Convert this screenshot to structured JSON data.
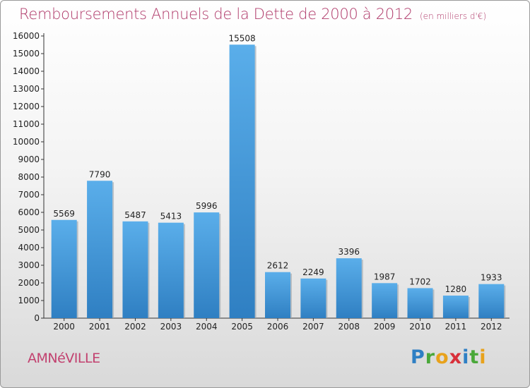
{
  "chart_data": {
    "type": "bar",
    "title": "Remboursements Annuels de la Dette de 2000 à 2012",
    "subtitle": "(en milliers d'€)",
    "categories": [
      "2000",
      "2001",
      "2002",
      "2003",
      "2004",
      "2005",
      "2006",
      "2007",
      "2008",
      "2009",
      "2010",
      "2011",
      "2012"
    ],
    "values": [
      5569,
      7790,
      5487,
      5413,
      5996,
      15508,
      2612,
      2249,
      3396,
      1987,
      1702,
      1280,
      1933
    ],
    "data_labels": [
      "5569",
      "7790",
      "5487",
      "5413",
      "5996",
      "15508",
      "2612",
      "2249",
      "3396",
      "1987",
      "1702",
      "1280",
      "1933"
    ],
    "y_ticks": [
      "0",
      "1000",
      "2000",
      "3000",
      "4000",
      "5000",
      "6000",
      "7000",
      "8000",
      "9000",
      "10000",
      "11000",
      "12000",
      "13000",
      "14000",
      "15000",
      "16000"
    ],
    "ylim": [
      0,
      16000
    ],
    "xlabel": "",
    "ylabel": "",
    "bar_color": "#3f93d6",
    "grid": false
  },
  "footer": {
    "commune": "AMNéVILLE",
    "logo_letters": [
      {
        "ch": "P",
        "color": "#2e7fc4"
      },
      {
        "ch": "r",
        "color": "#4aa83a"
      },
      {
        "ch": "o",
        "color": "#e8a21c"
      },
      {
        "ch": "x",
        "color": "#d8303a"
      },
      {
        "ch": "i",
        "color": "#2e7fc4"
      },
      {
        "ch": "t",
        "color": "#4aa83a"
      },
      {
        "ch": "i",
        "color": "#e8a21c"
      }
    ]
  }
}
